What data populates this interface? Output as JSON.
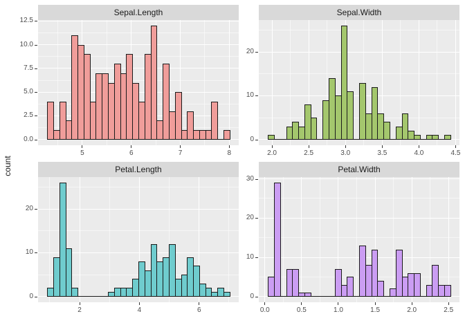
{
  "figure": {
    "y_axis_title": "count",
    "background": "#FFFFFF",
    "panel_background": "#EBEBEB",
    "strip_background": "#D9D9D9",
    "grid_color": "#FFFFFF",
    "bar_outline": "#1A1A1A",
    "tick_label_color": "#4D4D4D",
    "strip_text_color": "#1A1A1A"
  },
  "chart_data": [
    {
      "type": "bar",
      "subtype": "histogram",
      "title": "Sepal.Length",
      "fill": "#F09D9A",
      "bin_start": 4.28276,
      "bin_width": 0.12414,
      "counts": [
        4,
        1,
        4,
        2,
        11,
        10,
        9,
        4,
        7,
        7,
        6,
        8,
        7,
        9,
        6,
        4,
        9,
        12,
        2,
        8,
        3,
        5,
        1,
        3,
        1,
        1,
        1,
        4,
        0,
        1
      ],
      "x_domain": [
        4.09655,
        8.19311
      ],
      "y_domain": [
        -0.6,
        12.6
      ],
      "x_ticks": {
        "values": [
          5,
          6,
          7,
          8
        ],
        "labels": [
          "5",
          "6",
          "7",
          "8"
        ]
      },
      "y_ticks": {
        "values": [
          0,
          2.5,
          5,
          7.5,
          10,
          12.5
        ],
        "labels": [
          "0.0",
          "2.5",
          "5.0",
          "7.5",
          "10.0",
          "12.5"
        ]
      }
    },
    {
      "type": "bar",
      "subtype": "histogram",
      "title": "Sepal.Width",
      "fill": "#A4C76D",
      "bin_start": 1.94483,
      "bin_width": 0.08276,
      "counts": [
        1,
        0,
        0,
        3,
        4,
        3,
        8,
        5,
        0,
        9,
        14,
        10,
        26,
        11,
        0,
        13,
        6,
        12,
        6,
        4,
        0,
        3,
        6,
        2,
        1,
        0,
        1,
        1,
        0,
        1
      ],
      "x_domain": [
        1.82069,
        4.55177
      ],
      "y_domain": [
        -1.3,
        27.3
      ],
      "x_ticks": {
        "values": [
          2.0,
          2.5,
          3.0,
          3.5,
          4.0,
          4.5
        ],
        "labels": [
          "2.0",
          "2.5",
          "3.0",
          "3.5",
          "4.0",
          "4.5"
        ]
      },
      "y_ticks": {
        "values": [
          0,
          10,
          20
        ],
        "labels": [
          "0",
          "10",
          "20"
        ]
      }
    },
    {
      "type": "bar",
      "subtype": "histogram",
      "title": "Petal.Length",
      "fill": "#6FCCCE",
      "bin_start": 0.91552,
      "bin_width": 0.20345,
      "counts": [
        2,
        9,
        26,
        11,
        2,
        0,
        0,
        0,
        0,
        0,
        1,
        2,
        2,
        2,
        4,
        8,
        6,
        12,
        8,
        9,
        12,
        4,
        5,
        9,
        7,
        3,
        2,
        1,
        2,
        1
      ],
      "x_domain": [
        0.61035,
        7.32419
      ],
      "y_domain": [
        -1.3,
        27.3
      ],
      "x_ticks": {
        "values": [
          2,
          4,
          6
        ],
        "labels": [
          "2",
          "4",
          "6"
        ]
      },
      "y_ticks": {
        "values": [
          0,
          10,
          20
        ],
        "labels": [
          "0",
          "10",
          "20"
        ]
      }
    },
    {
      "type": "bar",
      "subtype": "histogram",
      "title": "Petal.Width",
      "fill": "#CB9DF3",
      "bin_start": 0.04138,
      "bin_width": 0.08276,
      "counts": [
        5,
        29,
        0,
        7,
        7,
        1,
        1,
        0,
        0,
        0,
        0,
        7,
        3,
        5,
        0,
        13,
        8,
        12,
        4,
        0,
        2,
        12,
        5,
        6,
        6,
        0,
        3,
        8,
        3,
        3
      ],
      "x_domain": [
        -0.08276,
        2.64832
      ],
      "y_domain": [
        -1.45,
        30.45
      ],
      "x_ticks": {
        "values": [
          0.0,
          0.5,
          1.0,
          1.5,
          2.0,
          2.5
        ],
        "labels": [
          "0.0",
          "0.5",
          "1.0",
          "1.5",
          "2.0",
          "2.5"
        ]
      },
      "y_ticks": {
        "values": [
          0,
          10,
          20,
          30
        ],
        "labels": [
          "0",
          "10",
          "20",
          "30"
        ]
      }
    }
  ]
}
